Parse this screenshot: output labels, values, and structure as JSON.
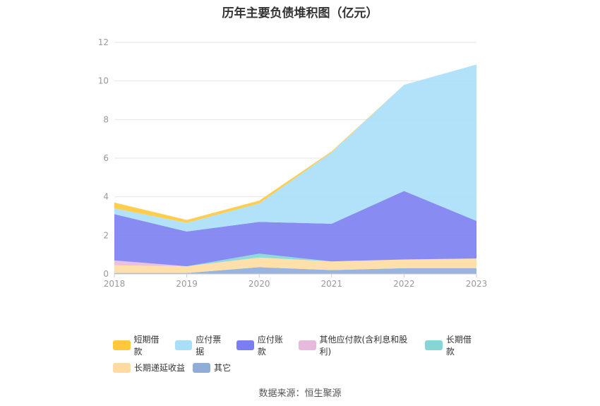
{
  "title": "历年主要负债堆积图（亿元）",
  "source": "数据来源：恒生聚源",
  "chart_data": {
    "type": "area",
    "stacked": true,
    "categories": [
      "2018",
      "2019",
      "2020",
      "2021",
      "2022",
      "2023"
    ],
    "ylim": [
      0,
      12
    ],
    "yticks": [
      "0",
      "2",
      "4",
      "6",
      "8",
      "10",
      "12"
    ],
    "grid": true,
    "legend_position": "bottom",
    "series": [
      {
        "name": "其它",
        "color": "#8fadd9",
        "values": [
          0.05,
          0.05,
          0.35,
          0.2,
          0.3,
          0.3
        ]
      },
      {
        "name": "长期递延收益",
        "color": "#ffdba1",
        "values": [
          0.4,
          0.35,
          0.5,
          0.45,
          0.45,
          0.5
        ]
      },
      {
        "name": "长期借款",
        "color": "#86d6d6",
        "values": [
          0.0,
          0.0,
          0.2,
          0.0,
          0.0,
          0.0
        ]
      },
      {
        "name": "其他应付款(含利息和股利)",
        "color": "#e7b9dc",
        "values": [
          0.25,
          0.0,
          0.0,
          0.0,
          0.0,
          0.0
        ]
      },
      {
        "name": "应付账款",
        "color": "#7b7ef0",
        "values": [
          2.4,
          1.8,
          1.65,
          1.95,
          3.55,
          1.95
        ]
      },
      {
        "name": "应付票据",
        "color": "#a8dff8",
        "values": [
          0.3,
          0.45,
          0.95,
          3.7,
          5.5,
          8.1
        ]
      },
      {
        "name": "短期借款",
        "color": "#ffc83d",
        "values": [
          0.3,
          0.15,
          0.15,
          0.05,
          0.0,
          0.0
        ]
      }
    ]
  },
  "legend": {
    "rows": [
      [
        {
          "label": "短期借款",
          "color": "#ffc83d"
        },
        {
          "label": "应付票据",
          "color": "#a8dff8"
        },
        {
          "label": "应付账款",
          "color": "#7b7ef0"
        },
        {
          "label": "其他应付款(含利息和股利)",
          "color": "#e7b9dc"
        },
        {
          "label": "长期借款",
          "color": "#86d6d6"
        }
      ],
      [
        {
          "label": "长期递延收益",
          "color": "#ffdba1"
        },
        {
          "label": "其它",
          "color": "#8fadd9"
        }
      ]
    ]
  }
}
